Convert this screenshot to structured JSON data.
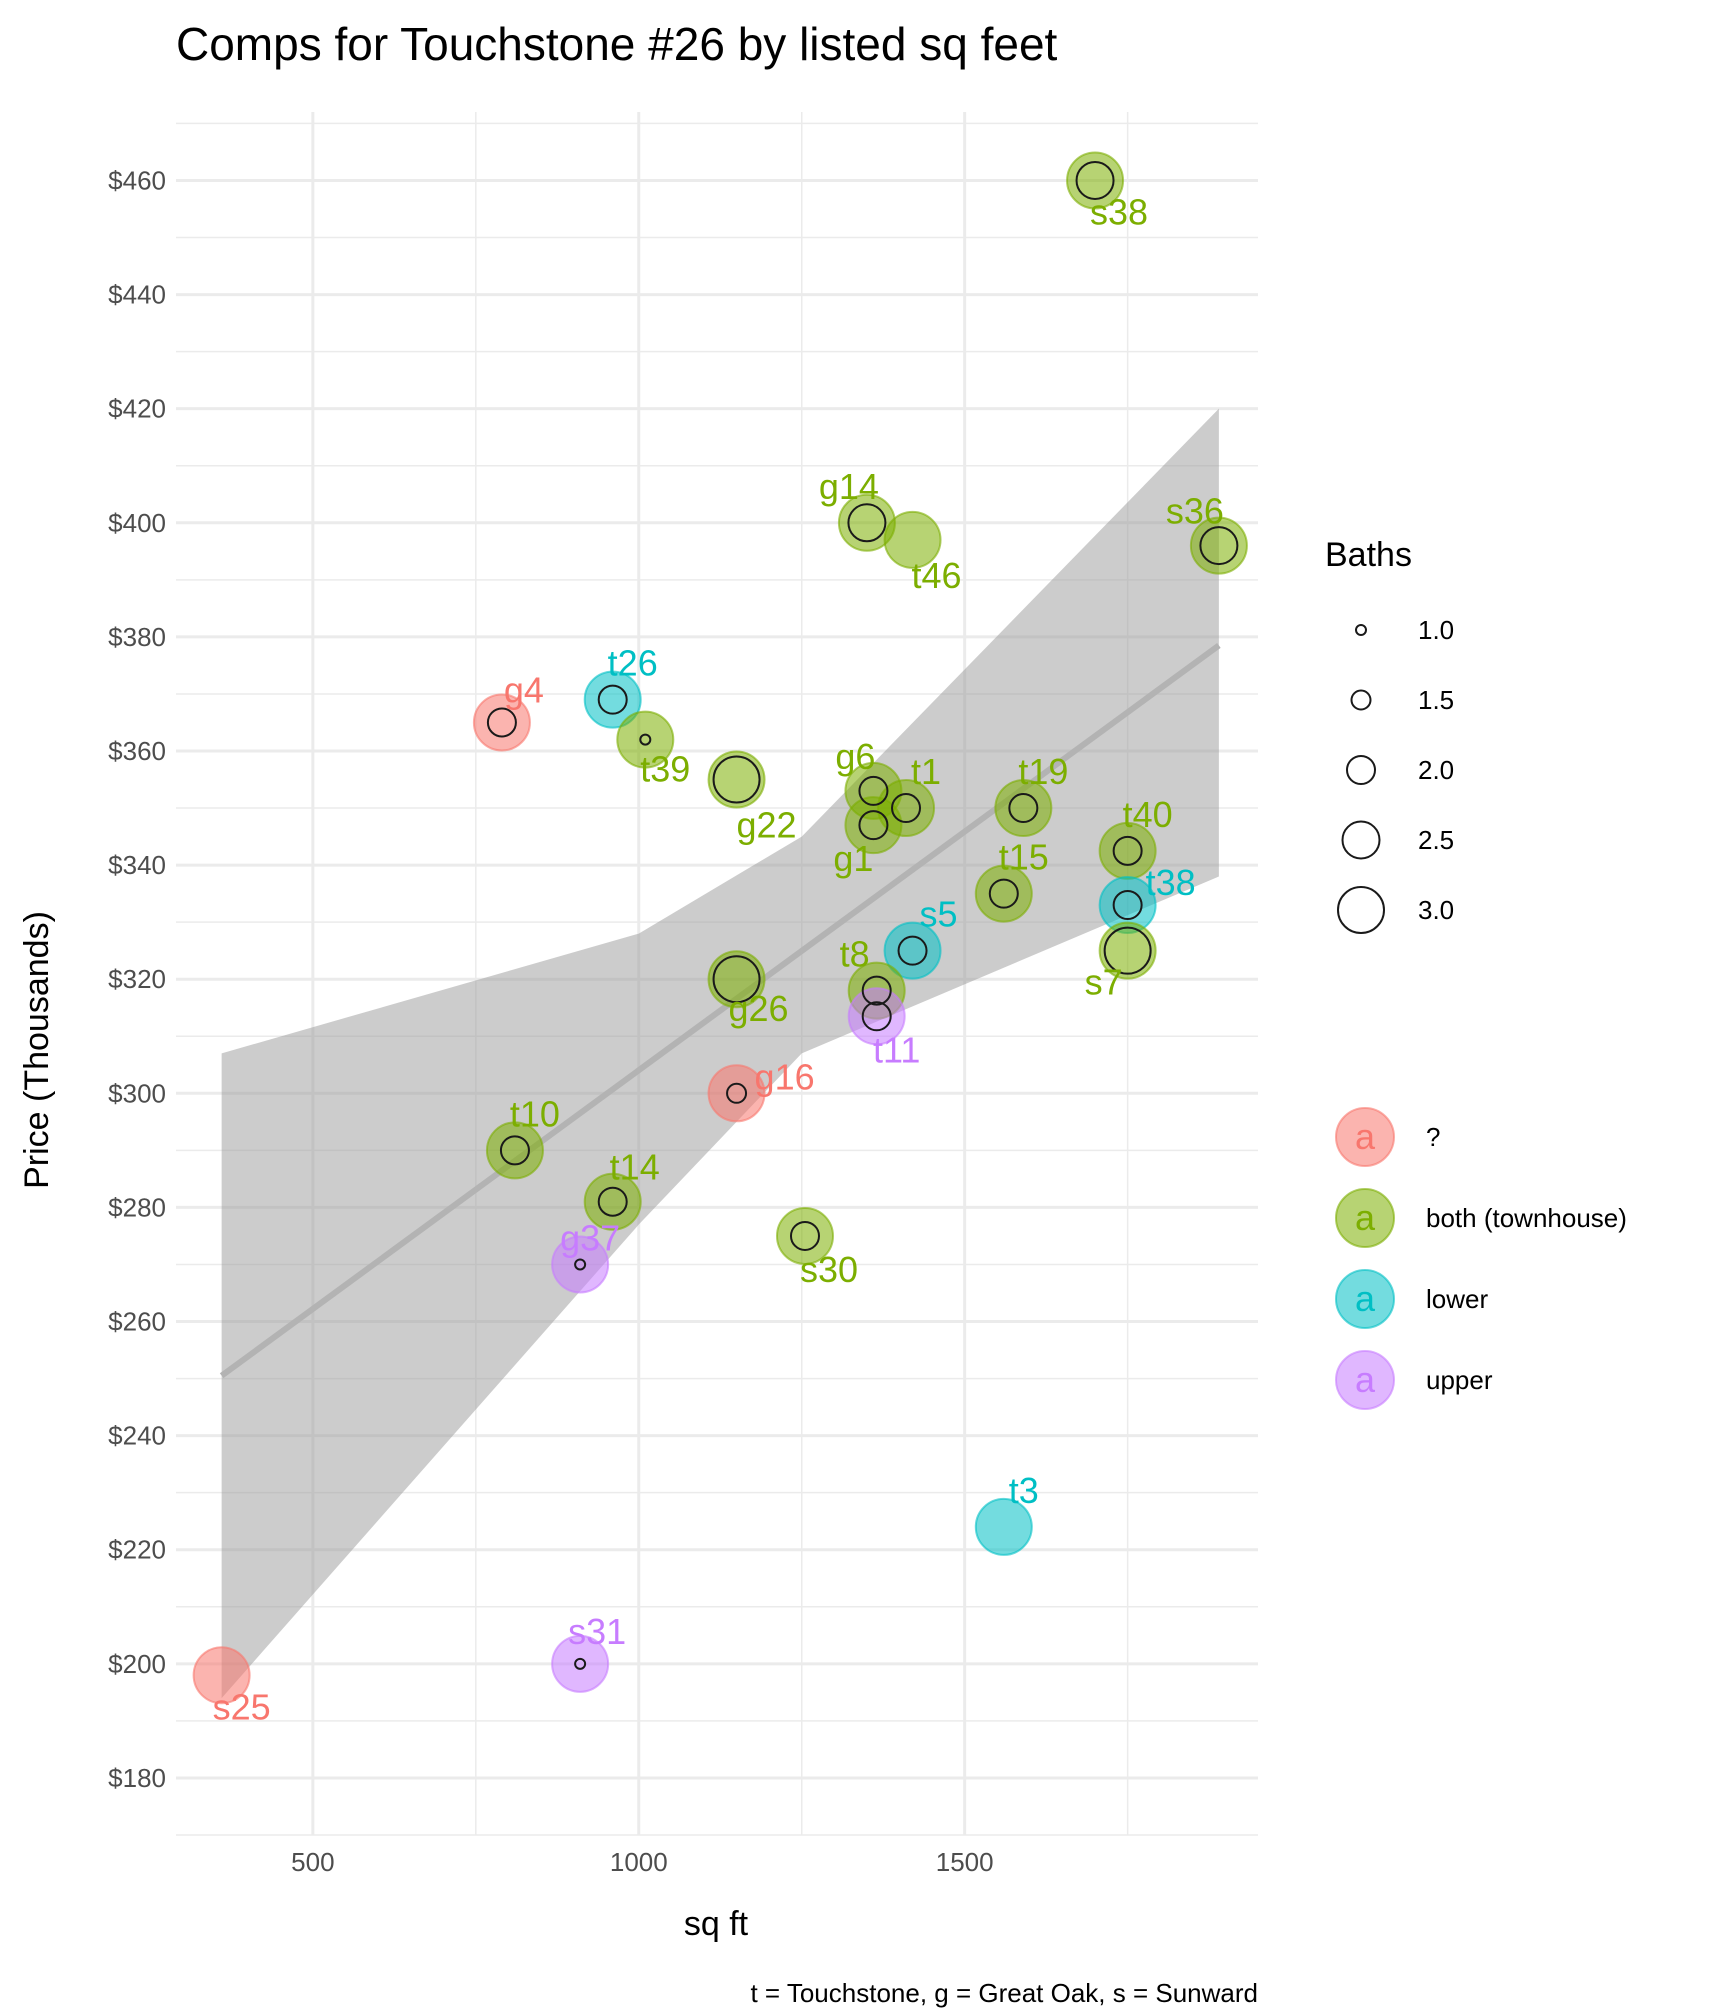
{
  "chart_data": {
    "type": "scatter",
    "title": "Comps for Touchstone #26 by listed sq feet",
    "xlabel": "sq ft",
    "ylabel": "Price (Thousands)",
    "caption": "t = Touchstone, g = Great Oak, s = Sunward",
    "xlim": [
      290,
      1950
    ],
    "ylim": [
      170,
      472
    ],
    "xticks": [
      500,
      1000,
      1500
    ],
    "xtick_labels": [
      "500",
      "1000",
      "1500"
    ],
    "yticks": [
      180,
      200,
      220,
      240,
      260,
      280,
      300,
      320,
      340,
      360,
      380,
      400,
      420,
      440,
      460
    ],
    "ytick_labels": [
      "$180",
      "$200",
      "$220",
      "$240",
      "$260",
      "$280",
      "$300",
      "$320",
      "$340",
      "$360",
      "$380",
      "$400",
      "$420",
      "$440",
      "$460"
    ],
    "grid": true,
    "colors": {
      "?": "#F8766D",
      "both (townhouse)": "#7CAE00",
      "lower": "#00BFC4",
      "upper": "#C77CFF"
    },
    "trend": {
      "x_start": 360,
      "y_start": 250.5,
      "x_end": 1890,
      "y_end": 378.5,
      "band": [
        {
          "x": 360,
          "lo": 194,
          "hi": 307
        },
        {
          "x": 1000,
          "lo": 277,
          "hi": 328
        },
        {
          "x": 1250,
          "lo": 307,
          "hi": 345
        },
        {
          "x": 1890,
          "lo": 338,
          "hi": 420
        }
      ]
    },
    "points": [
      {
        "label": "s38",
        "x": 1700,
        "y": 460,
        "group": "both (townhouse)",
        "baths": 2.5
      },
      {
        "label": "g14",
        "x": 1350,
        "y": 400,
        "group": "both (townhouse)",
        "baths": 2.5
      },
      {
        "label": "t46",
        "x": 1420,
        "y": 397,
        "group": "both (townhouse)",
        "baths": null
      },
      {
        "label": "s36",
        "x": 1890,
        "y": 396,
        "group": "both (townhouse)",
        "baths": 2.5
      },
      {
        "label": "t26",
        "x": 960,
        "y": 369,
        "group": "lower",
        "baths": 2.0
      },
      {
        "label": "g4",
        "x": 790,
        "y": 365,
        "group": "?",
        "baths": 2.0
      },
      {
        "label": "t39",
        "x": 1010,
        "y": 362,
        "group": "both (townhouse)",
        "baths": 1.0
      },
      {
        "label": "g22",
        "x": 1150,
        "y": 355,
        "group": "both (townhouse)",
        "baths": 3.0
      },
      {
        "label": "g6",
        "x": 1360,
        "y": 353,
        "group": "both (townhouse)",
        "baths": 2.0
      },
      {
        "label": "t1",
        "x": 1410,
        "y": 350,
        "group": "both (townhouse)",
        "baths": 2.0
      },
      {
        "label": "t19",
        "x": 1590,
        "y": 350,
        "group": "both (townhouse)",
        "baths": 2.0
      },
      {
        "label": "g1",
        "x": 1360,
        "y": 347,
        "group": "both (townhouse)",
        "baths": 2.0
      },
      {
        "label": "t40",
        "x": 1750,
        "y": 342.5,
        "group": "both (townhouse)",
        "baths": 2.0
      },
      {
        "label": "t15",
        "x": 1560,
        "y": 335,
        "group": "both (townhouse)",
        "baths": 2.0
      },
      {
        "label": "t38",
        "x": 1750,
        "y": 333,
        "group": "lower",
        "baths": 2.0
      },
      {
        "label": "s5",
        "x": 1420,
        "y": 325,
        "group": "lower",
        "baths": 2.0
      },
      {
        "label": "s7",
        "x": 1750,
        "y": 325,
        "group": "both (townhouse)",
        "baths": 3.0
      },
      {
        "label": "g26",
        "x": 1150,
        "y": 320,
        "group": "both (townhouse)",
        "baths": 3.0
      },
      {
        "label": "t8",
        "x": 1365,
        "y": 318,
        "group": "both (townhouse)",
        "baths": 2.0
      },
      {
        "label": "t11",
        "x": 1365,
        "y": 313.5,
        "group": "upper",
        "baths": 2.0
      },
      {
        "label": "g16",
        "x": 1150,
        "y": 300,
        "group": "?",
        "baths": 1.5
      },
      {
        "label": "t10",
        "x": 810,
        "y": 290,
        "group": "both (townhouse)",
        "baths": 2.0
      },
      {
        "label": "t14",
        "x": 960,
        "y": 281,
        "group": "both (townhouse)",
        "baths": 2.0
      },
      {
        "label": "s30",
        "x": 1255,
        "y": 275,
        "group": "both (townhouse)",
        "baths": 2.0
      },
      {
        "label": "g37",
        "x": 910,
        "y": 270,
        "group": "upper",
        "baths": 1.0
      },
      {
        "label": "t3",
        "x": 1560,
        "y": 224,
        "group": "lower",
        "baths": null
      },
      {
        "label": "s31",
        "x": 910,
        "y": 200,
        "group": "upper",
        "baths": 1.0
      },
      {
        "label": "s25",
        "x": 360,
        "y": 198,
        "group": "?",
        "baths": null
      }
    ],
    "legend_baths": {
      "title": "Baths",
      "items": [
        {
          "label": "1.0",
          "value": 1.0
        },
        {
          "label": "1.5",
          "value": 1.5
        },
        {
          "label": "2.0",
          "value": 2.0
        },
        {
          "label": "2.5",
          "value": 2.5
        },
        {
          "label": "3.0",
          "value": 3.0
        }
      ]
    },
    "legend_groups": {
      "key_glyph": "a",
      "items": [
        "?",
        "both (townhouse)",
        "lower",
        "upper"
      ]
    },
    "legend_placement": "right"
  }
}
